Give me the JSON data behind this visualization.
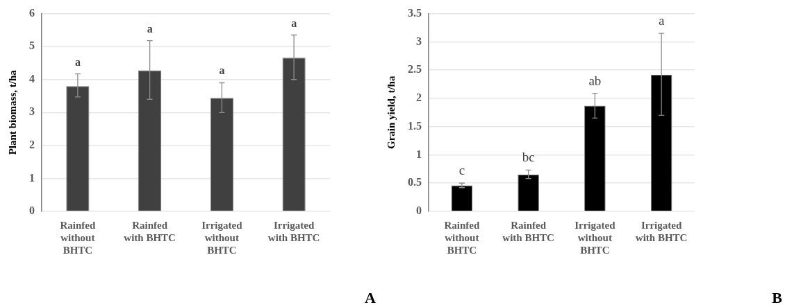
{
  "chart_data": [
    {
      "type": "bar",
      "ylabel": "Plant biomass, t/ha",
      "categories": [
        "Rainfed without BHTC",
        "Rainfed with BHTC",
        "Irrigated without BHTC",
        "Irrigated with BHTC"
      ],
      "values": [
        3.8,
        4.28,
        3.44,
        4.66
      ],
      "color": "#404040",
      "errors": [
        [
          3.47,
          4.17
        ],
        [
          3.4,
          5.18
        ],
        [
          3.0,
          3.9
        ],
        [
          4.0,
          5.35
        ]
      ],
      "ylim": [
        0,
        6
      ],
      "yticks": [
        0,
        1,
        2,
        3,
        4,
        5,
        6
      ],
      "grid": "y",
      "annotations": [
        "a",
        "a",
        "a",
        "a",
        "A"
      ]
    },
    {
      "type": "bar",
      "ylabel": "Grain yield, t/ha",
      "categories": [
        "Rainfed without BHTC",
        "Rainfed with BHTC",
        "Irrigated without BHTC",
        "Irrigated with BHTC"
      ],
      "values": [
        0.46,
        0.65,
        1.87,
        2.42
      ],
      "color": "#000000",
      "errors": [
        [
          0.42,
          0.5
        ],
        [
          0.58,
          0.73
        ],
        [
          1.65,
          2.09
        ],
        [
          1.7,
          3.15
        ]
      ],
      "ylim": [
        0,
        3.5
      ],
      "yticks": [
        0,
        0.5,
        1,
        1.5,
        2,
        2.5,
        3,
        3.5
      ],
      "grid": "y",
      "annotations": [
        "c",
        "bc",
        "ab",
        "a",
        "B"
      ]
    }
  ]
}
